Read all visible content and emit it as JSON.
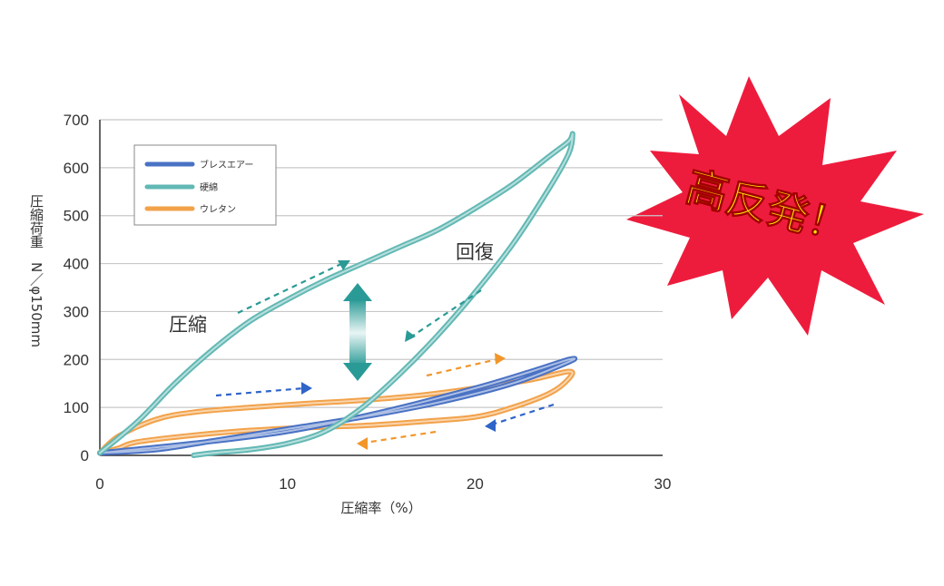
{
  "chart_data": {
    "type": "line",
    "xlabel": "圧縮率（%）",
    "ylabel": "圧縮荷重　N／φ150mm",
    "xlim": [
      0,
      30
    ],
    "ylim": [
      0,
      700
    ],
    "xticks": [
      "0",
      "10",
      "20",
      "30"
    ],
    "yticks": [
      "0",
      "100",
      "200",
      "300",
      "400",
      "500",
      "600",
      "700"
    ],
    "grid": "horizontal",
    "legend_position": "top-left",
    "series": [
      {
        "name": "ブレスエアー",
        "color": "#4a72c4",
        "x": [
          0,
          5,
          10,
          15,
          20,
          23,
          25,
          25,
          22,
          18,
          14,
          10,
          6,
          3,
          0
        ],
        "y": [
          5,
          25,
          50,
          90,
          140,
          175,
          200,
          195,
          150,
          110,
          80,
          55,
          30,
          12,
          5
        ]
      },
      {
        "name": "硬綿",
        "color": "#62b8b4",
        "x": [
          0,
          2,
          4,
          6,
          8,
          10,
          12,
          14,
          16,
          18,
          20,
          22,
          24,
          25,
          25.2,
          25,
          24,
          22,
          20,
          18,
          16,
          14,
          12,
          10,
          8,
          6,
          5
        ],
        "y": [
          5,
          70,
          150,
          220,
          280,
          325,
          365,
          400,
          435,
          470,
          515,
          565,
          625,
          655,
          670,
          630,
          560,
          440,
          340,
          250,
          170,
          100,
          50,
          25,
          12,
          5,
          0
        ],
        "annotations": [
          "圧縮",
          "回復"
        ]
      },
      {
        "name": "ウレタン",
        "color": "#f2a24a",
        "x": [
          0,
          1,
          3,
          5,
          8,
          11,
          14,
          17,
          20,
          23,
          25,
          25,
          24,
          22,
          20,
          17,
          14,
          11,
          8,
          5,
          2,
          1,
          0
        ],
        "y": [
          5,
          40,
          75,
          90,
          100,
          108,
          115,
          125,
          140,
          158,
          175,
          160,
          130,
          100,
          80,
          70,
          62,
          58,
          52,
          42,
          28,
          15,
          5
        ]
      }
    ],
    "callout": "高反発！"
  }
}
